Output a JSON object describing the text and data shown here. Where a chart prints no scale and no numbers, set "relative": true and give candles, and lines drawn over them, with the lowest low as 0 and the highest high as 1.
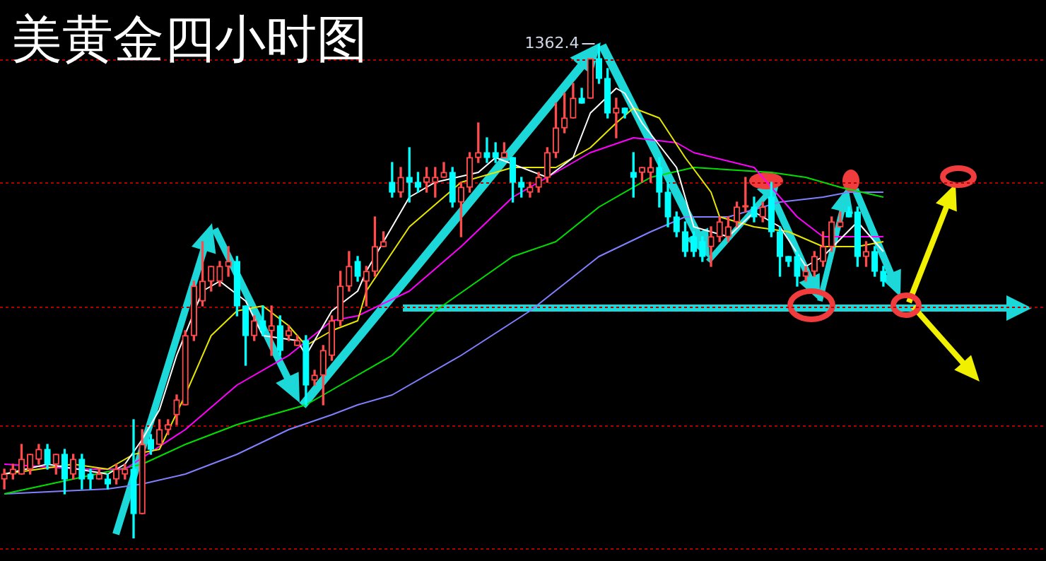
{
  "chart_data": {
    "type": "candlestick",
    "title": "美黄金四小时图",
    "relative": true,
    "marker": "none",
    "categories": [
      null,
      null,
      null,
      null,
      null,
      null,
      null,
      null,
      null,
      null,
      null,
      null,
      null,
      null,
      null,
      null,
      null,
      null,
      null,
      null,
      null,
      null,
      null,
      null,
      null,
      null,
      null,
      null,
      null,
      null,
      null,
      null,
      null,
      null,
      null,
      null,
      null,
      null,
      null,
      null,
      null,
      null,
      null,
      null,
      null,
      null,
      null,
      null,
      null,
      null,
      null,
      null,
      null,
      null,
      null,
      null,
      null,
      null,
      null,
      null,
      null,
      null,
      null,
      null,
      null,
      null,
      null,
      null,
      null,
      null,
      null,
      null,
      null,
      null,
      null,
      null,
      null,
      null,
      null,
      null,
      null,
      null,
      null,
      null,
      null,
      null,
      null,
      null,
      null,
      null,
      null,
      null,
      null,
      null,
      null,
      null,
      null,
      null,
      null,
      null,
      null,
      null,
      null
    ],
    "ohlc": [
      [
        0.12,
        0.14,
        0.1,
        0.13
      ],
      [
        0.13,
        0.15,
        0.12,
        0.14
      ],
      [
        0.13,
        0.19,
        0.13,
        0.16
      ],
      [
        0.14,
        0.17,
        0.13,
        0.17
      ],
      [
        0.16,
        0.19,
        0.15,
        0.18
      ],
      [
        0.18,
        0.19,
        0.14,
        0.15
      ],
      [
        0.15,
        0.17,
        0.13,
        0.17
      ],
      [
        0.17,
        0.18,
        0.09,
        0.12
      ],
      [
        0.13,
        0.17,
        0.12,
        0.16
      ],
      [
        0.16,
        0.17,
        0.1,
        0.12
      ],
      [
        0.13,
        0.14,
        0.1,
        0.12
      ],
      [
        0.12,
        0.14,
        0.12,
        0.13
      ],
      [
        0.12,
        0.13,
        0.1,
        0.11
      ],
      [
        0.12,
        0.15,
        0.11,
        0.14
      ],
      [
        0.13,
        0.15,
        0.12,
        0.14
      ],
      [
        0.14,
        0.24,
        0.0,
        0.05
      ],
      [
        0.05,
        0.22,
        0.05,
        0.19
      ],
      [
        0.2,
        0.21,
        0.17,
        0.18
      ],
      [
        0.19,
        0.24,
        0.19,
        0.22
      ],
      [
        0.22,
        0.24,
        0.21,
        0.23
      ],
      [
        0.25,
        0.29,
        0.23,
        0.28
      ],
      [
        0.27,
        0.42,
        0.27,
        0.41
      ],
      [
        0.41,
        0.52,
        0.4,
        0.51
      ],
      [
        0.48,
        0.6,
        0.47,
        0.52
      ],
      [
        0.52,
        0.55,
        0.5,
        0.55
      ],
      [
        0.52,
        0.56,
        0.51,
        0.55
      ],
      [
        0.55,
        0.59,
        0.53,
        0.56
      ],
      [
        0.56,
        0.57,
        0.45,
        0.47
      ],
      [
        0.47,
        0.47,
        0.35,
        0.41
      ],
      [
        0.41,
        0.45,
        0.4,
        0.44
      ],
      [
        0.44,
        0.47,
        0.41,
        0.42
      ],
      [
        0.42,
        0.47,
        0.37,
        0.43
      ],
      [
        0.43,
        0.45,
        0.37,
        0.38
      ],
      [
        0.41,
        0.43,
        0.4,
        0.42
      ],
      [
        0.39,
        0.41,
        0.39,
        0.4
      ],
      [
        0.4,
        0.41,
        0.27,
        0.31
      ],
      [
        0.32,
        0.34,
        0.31,
        0.33
      ],
      [
        0.33,
        0.39,
        0.27,
        0.38
      ],
      [
        0.37,
        0.45,
        0.36,
        0.44
      ],
      [
        0.44,
        0.54,
        0.43,
        0.51
      ],
      [
        0.51,
        0.58,
        0.5,
        0.55
      ],
      [
        0.56,
        0.57,
        0.52,
        0.53
      ],
      [
        0.52,
        0.55,
        0.47,
        0.54
      ],
      [
        0.54,
        0.65,
        0.53,
        0.59
      ],
      [
        0.59,
        0.62,
        0.59,
        0.6
      ],
      [
        0.72,
        0.76,
        0.69,
        0.7
      ],
      [
        0.7,
        0.75,
        0.69,
        0.73
      ],
      [
        0.73,
        0.79,
        0.68,
        0.72
      ],
      [
        0.72,
        0.74,
        0.7,
        0.71
      ],
      [
        0.72,
        0.75,
        0.7,
        0.73
      ],
      [
        0.72,
        0.75,
        0.69,
        0.73
      ],
      [
        0.73,
        0.76,
        0.73,
        0.74
      ],
      [
        0.74,
        0.75,
        0.67,
        0.68
      ],
      [
        0.68,
        0.72,
        0.61,
        0.71
      ],
      [
        0.71,
        0.78,
        0.7,
        0.77
      ],
      [
        0.77,
        0.84,
        0.76,
        0.78
      ],
      [
        0.78,
        0.81,
        0.76,
        0.77
      ],
      [
        0.78,
        0.8,
        0.76,
        0.77
      ],
      [
        0.77,
        0.8,
        0.77,
        0.78
      ],
      [
        0.77,
        0.77,
        0.68,
        0.72
      ],
      [
        0.72,
        0.73,
        0.69,
        0.71
      ],
      [
        0.7,
        0.72,
        0.69,
        0.71
      ],
      [
        0.71,
        0.74,
        0.7,
        0.73
      ],
      [
        0.73,
        0.79,
        0.72,
        0.78
      ],
      [
        0.78,
        0.88,
        0.77,
        0.83
      ],
      [
        0.83,
        0.9,
        0.82,
        0.85
      ],
      [
        0.85,
        0.92,
        0.85,
        0.89
      ],
      [
        0.89,
        0.91,
        0.88,
        0.88
      ],
      [
        0.89,
        0.97,
        0.89,
        0.97
      ],
      [
        0.97,
        1.0,
        0.92,
        0.93
      ],
      [
        0.93,
        0.95,
        0.85,
        0.86
      ],
      [
        0.86,
        0.89,
        0.81,
        0.87
      ],
      [
        0.87,
        0.87,
        0.85,
        0.86
      ],
      [
        0.74,
        0.78,
        0.69,
        0.73
      ],
      [
        0.74,
        0.75,
        0.72,
        0.75
      ],
      [
        0.74,
        0.77,
        0.72,
        0.75
      ],
      [
        0.75,
        0.77,
        0.67,
        0.7
      ],
      [
        0.7,
        0.72,
        0.63,
        0.65
      ],
      [
        0.65,
        0.66,
        0.61,
        0.62
      ],
      [
        0.62,
        0.64,
        0.57,
        0.58
      ],
      [
        0.61,
        0.62,
        0.57,
        0.58
      ],
      [
        0.6,
        0.61,
        0.56,
        0.57
      ],
      [
        0.59,
        0.63,
        0.55,
        0.61
      ],
      [
        0.61,
        0.65,
        0.6,
        0.64
      ],
      [
        0.61,
        0.65,
        0.6,
        0.63
      ],
      [
        0.64,
        0.68,
        0.63,
        0.67
      ],
      [
        0.67,
        0.73,
        0.66,
        0.67
      ],
      [
        0.67,
        0.69,
        0.64,
        0.65
      ],
      [
        0.65,
        0.68,
        0.64,
        0.67
      ],
      [
        0.69,
        0.72,
        0.61,
        0.62
      ],
      [
        0.62,
        0.63,
        0.53,
        0.57
      ],
      [
        0.57,
        0.57,
        0.55,
        0.56
      ],
      [
        0.57,
        0.58,
        0.51,
        0.53
      ],
      [
        0.53,
        0.55,
        0.52,
        0.54
      ],
      [
        0.54,
        0.58,
        0.53,
        0.57
      ],
      [
        0.56,
        0.62,
        0.55,
        0.59
      ],
      [
        0.59,
        0.65,
        0.58,
        0.64
      ],
      [
        0.63,
        0.66,
        0.63,
        0.64
      ],
      [
        0.66,
        0.67,
        0.65,
        0.65
      ],
      [
        0.66,
        0.67,
        0.55,
        0.57
      ],
      [
        0.57,
        0.6,
        0.55,
        0.58
      ],
      [
        0.58,
        0.59,
        0.53,
        0.54
      ],
      [
        0.54,
        0.55,
        0.51,
        0.52
      ]
    ],
    "colors": [
      "#ff4b4b",
      "#ff4b4b",
      "#ff4b4b",
      "#ff4b4b",
      "#ff4b4b",
      "#00ffff",
      "#ff4b4b",
      "#00ffff",
      "#ff4b4b",
      "#00ffff",
      "#00ffff",
      "#ff4b4b",
      "#00ffff",
      "#ff4b4b",
      "#ff4b4b",
      "#00ffff",
      "#ff4b4b",
      "#00ffff",
      "#ff4b4b",
      "#ff4b4b",
      "#ff4b4b",
      "#ff4b4b",
      "#ff4b4b",
      "#ff4b4b",
      "#ff4b4b",
      "#ff4b4b",
      "#ff4b4b",
      "#00ffff",
      "#00ffff",
      "#ff4b4b",
      "#00ffff",
      "#ff4b4b",
      "#00ffff",
      "#ff4b4b",
      "#ff4b4b",
      "#00ffff",
      "#ff4b4b",
      "#ff4b4b",
      "#ff4b4b",
      "#ff4b4b",
      "#ff4b4b",
      "#00ffff",
      "#ff4b4b",
      "#ff4b4b",
      "#ff4b4b",
      "#00ffff",
      "#ff4b4b",
      "#00ffff",
      "#00ffff",
      "#ff4b4b",
      "#ff4b4b",
      "#ff4b4b",
      "#00ffff",
      "#ff4b4b",
      "#ff4b4b",
      "#ff4b4b",
      "#00ffff",
      "#00ffff",
      "#ff4b4b",
      "#00ffff",
      "#00ffff",
      "#ff4b4b",
      "#ff4b4b",
      "#ff4b4b",
      "#ff4b4b",
      "#ff4b4b",
      "#ff4b4b",
      "#00ffff",
      "#ff4b4b",
      "#00ffff",
      "#00ffff",
      "#ff4b4b",
      "#00ffff",
      "#00ffff",
      "#ff4b4b",
      "#ff4b4b",
      "#00ffff",
      "#00ffff",
      "#00ffff",
      "#00ffff",
      "#00ffff",
      "#00ffff",
      "#ff4b4b",
      "#ff4b4b",
      "#ff4b4b",
      "#ff4b4b",
      "#ff4b4b",
      "#00ffff",
      "#ff4b4b",
      "#00ffff",
      "#00ffff",
      "#00ffff",
      "#00ffff",
      "#ff4b4b",
      "#ff4b4b",
      "#ff4b4b",
      "#ff4b4b",
      "#ff4b4b",
      "#00ffff",
      "#00ffff",
      "#ff4b4b",
      "#00ffff",
      "#00ffff"
    ],
    "series": [
      {
        "type": "line",
        "color": "#ffffff",
        "values": [
          0.13,
          null,
          null,
          null,
          null,
          0.15,
          null,
          null,
          null,
          null,
          null,
          null,
          0.13,
          null,
          0.15,
          null,
          0.2,
          null,
          0.26,
          null,
          0.37,
          null,
          null,
          0.5,
          null,
          0.52,
          null,
          null,
          0.48,
          null,
          0.41,
          null,
          null,
          null,
          0.4,
          0.37,
          null,
          null,
          0.46,
          null,
          null,
          0.5,
          0.54,
          null,
          null,
          null,
          null,
          0.69,
          null,
          null,
          0.72,
          null,
          null,
          null,
          null,
          0.74,
          null,
          0.77,
          null,
          null,
          0.75,
          null,
          null,
          0.73,
          null,
          null,
          0.77,
          null,
          0.86,
          null,
          null,
          0.91,
          0.9,
          null,
          0.84,
          null,
          null,
          null,
          0.75,
          null,
          0.63,
          null,
          null,
          null,
          0.61,
          null,
          null,
          0.66,
          null,
          null,
          0.63,
          null,
          null,
          0.55,
          null,
          0.57,
          null,
          null,
          null,
          0.64,
          null,
          null,
          0.58
        ]
      },
      {
        "type": "line",
        "color": "#e6e600",
        "values": [
          0.13,
          null,
          null,
          null,
          null,
          null,
          null,
          null,
          0.15,
          null,
          null,
          null,
          0.14,
          null,
          null,
          0.17,
          null,
          null,
          0.18,
          null,
          null,
          0.29,
          null,
          null,
          0.41,
          null,
          null,
          0.46,
          null,
          null,
          0.47,
          null,
          null,
          0.43,
          null,
          0.39,
          null,
          null,
          0.42,
          null,
          null,
          0.44,
          0.5,
          null,
          null,
          null,
          null,
          0.63,
          null,
          null,
          null,
          null,
          null,
          0.72,
          null,
          null,
          null,
          null,
          null,
          0.75,
          null,
          null,
          null,
          null,
          0.75,
          null,
          null,
          null,
          0.79,
          null,
          null,
          0.84,
          null,
          0.87,
          null,
          null,
          0.85,
          null,
          null,
          0.77,
          null,
          null,
          0.7,
          0.65,
          null,
          null,
          null,
          0.63,
          null,
          null,
          null,
          0.62,
          null,
          null,
          null,
          0.59,
          null,
          null,
          null,
          0.59,
          null,
          null,
          0.6
        ]
      },
      {
        "type": "line",
        "color": "#ff00ff",
        "values": [
          0.15,
          null,
          null,
          null,
          null,
          null,
          null,
          null,
          null,
          0.14,
          null,
          null,
          null,
          null,
          0.14,
          null,
          null,
          null,
          null,
          null,
          null,
          0.22,
          null,
          null,
          null,
          null,
          null,
          0.31,
          null,
          null,
          null,
          null,
          null,
          0.37,
          null,
          null,
          null,
          null,
          0.44,
          null,
          null,
          0.45,
          null,
          null,
          null,
          null,
          null,
          0.5,
          null,
          null,
          null,
          null,
          null,
          0.59,
          null,
          null,
          null,
          null,
          null,
          0.69,
          null,
          null,
          null,
          null,
          0.74,
          null,
          null,
          null,
          0.78,
          null,
          null,
          null,
          null,
          0.81,
          null,
          null,
          null,
          null,
          0.8,
          null,
          0.78,
          null,
          null,
          null,
          null,
          null,
          null,
          0.75,
          null,
          null,
          null,
          null,
          0.65,
          null,
          null,
          0.61,
          null,
          null,
          null,
          null,
          0.61,
          null,
          0.61
        ]
      },
      {
        "type": "line",
        "color": "#00e000",
        "values": [
          0.09,
          null,
          null,
          null,
          null,
          null,
          null,
          null,
          null,
          null,
          null,
          null,
          null,
          null,
          null,
          null,
          0.15,
          null,
          null,
          null,
          null,
          0.19,
          null,
          null,
          null,
          null,
          null,
          0.23,
          null,
          null,
          null,
          null,
          null,
          null,
          null,
          0.27,
          null,
          null,
          null,
          null,
          null,
          0.33,
          null,
          null,
          null,
          0.37,
          null,
          null,
          null,
          null,
          0.46,
          null,
          null,
          null,
          null,
          null,
          null,
          null,
          null,
          0.57,
          null,
          null,
          null,
          null,
          0.6,
          null,
          null,
          null,
          null,
          0.67,
          null,
          null,
          null,
          null,
          null,
          0.73,
          null,
          null,
          null,
          null,
          0.75,
          null,
          null,
          null,
          null,
          null,
          null,
          null,
          null,
          0.74,
          null,
          null,
          null,
          0.73,
          null,
          null,
          null,
          0.71,
          null,
          null,
          null,
          null,
          0.69
        ]
      },
      {
        "type": "line",
        "color": "#8080ff",
        "values": [
          0.09,
          null,
          null,
          null,
          null,
          null,
          null,
          null,
          null,
          null,
          null,
          null,
          0.1,
          null,
          null,
          null,
          0.11,
          null,
          null,
          null,
          null,
          0.13,
          null,
          null,
          null,
          null,
          null,
          0.17,
          null,
          null,
          null,
          null,
          null,
          0.22,
          null,
          null,
          null,
          null,
          0.25,
          null,
          null,
          0.27,
          null,
          null,
          null,
          0.29,
          null,
          null,
          null,
          null,
          null,
          null,
          null,
          0.37,
          null,
          null,
          null,
          null,
          null,
          null,
          null,
          0.46,
          null,
          null,
          null,
          null,
          null,
          null,
          null,
          0.57,
          null,
          null,
          null,
          null,
          null,
          0.62,
          null,
          null,
          null,
          0.65,
          null,
          null,
          null,
          null,
          0.65,
          null,
          null,
          null,
          null,
          null,
          0.68,
          null,
          null,
          null,
          null,
          0.69,
          null,
          null,
          0.7,
          null,
          null,
          null,
          0.7
        ]
      }
    ],
    "ref_lines": [
      {
        "axis": "y",
        "value": 0.97,
        "color": "#b00000",
        "line_style": "dotted"
      },
      {
        "axis": "y",
        "value": 0.72,
        "color": "#b00000",
        "line_style": "dotted"
      },
      {
        "axis": "y",
        "value": 0.47,
        "color": "#b00000",
        "line_style": "dotted"
      },
      {
        "axis": "y",
        "value": 0.23,
        "color": "#b00000",
        "line_style": "dotted"
      },
      {
        "axis": "y",
        "value": -0.02,
        "color": "#b00000",
        "line_style": "dotted"
      }
    ],
    "annotations": [
      "1362.4"
    ]
  }
}
